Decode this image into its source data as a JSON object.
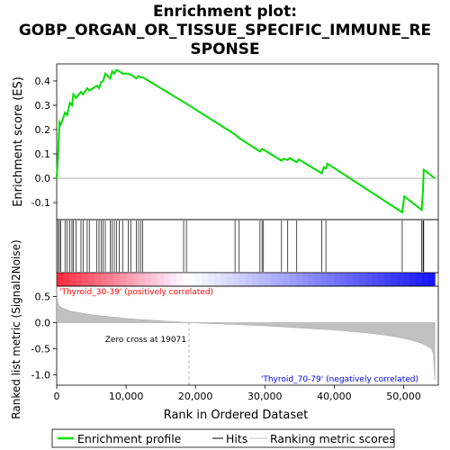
{
  "title_lines": [
    "Enrichment plot:",
    "GOBP_ORGAN_OR_TISSUE_SPECIFIC_IMMUNE_RE",
    "SPONSE"
  ],
  "colors": {
    "es_line": "#00dd00",
    "positive": "#ff0000",
    "negative": "#0000ff",
    "metric_fill": "#c0c0c0",
    "hits": "#000000"
  },
  "chart_data": [
    {
      "type": "line",
      "name": "Enrichment profile",
      "ylabel": "Enrichment score (ES)",
      "ylim": [
        -0.17,
        0.47
      ],
      "yticks": [
        -0.1,
        0.0,
        0.1,
        0.2,
        0.3,
        0.4
      ],
      "ytick_labels": [
        "-0.1",
        "0.0",
        "0.1",
        "0.2",
        "0.3",
        "0.4"
      ],
      "xlim": [
        0,
        55000
      ],
      "x": [
        0,
        200,
        400,
        600,
        1200,
        1500,
        1900,
        2200,
        2400,
        2800,
        3500,
        3800,
        4400,
        4700,
        5800,
        6100,
        6400,
        6700,
        7000,
        7700,
        8000,
        8300,
        8600,
        9000,
        9500,
        10300,
        10700,
        11500,
        11800,
        12100,
        12400,
        18500,
        25700,
        26300,
        29300,
        29600,
        29800,
        32400,
        32700,
        33300,
        33600,
        34600,
        34900,
        38200,
        38500,
        38800,
        39000,
        49800,
        50100,
        52600,
        52800,
        52900,
        54500
      ],
      "y": [
        0.0,
        0.09,
        0.23,
        0.22,
        0.27,
        0.26,
        0.31,
        0.3,
        0.345,
        0.33,
        0.355,
        0.345,
        0.37,
        0.36,
        0.38,
        0.37,
        0.395,
        0.4,
        0.43,
        0.41,
        0.44,
        0.43,
        0.445,
        0.44,
        0.43,
        0.43,
        0.425,
        0.41,
        0.42,
        0.415,
        0.415,
        0.31,
        0.18,
        0.165,
        0.11,
        0.12,
        0.118,
        0.072,
        0.08,
        0.075,
        0.083,
        0.066,
        0.077,
        0.02,
        0.045,
        0.04,
        0.06,
        -0.14,
        -0.075,
        -0.13,
        -0.05,
        0.035,
        0.0
      ]
    },
    {
      "type": "scatter",
      "name": "Hits",
      "x": [
        200,
        400,
        600,
        1200,
        1500,
        1900,
        2200,
        2400,
        2800,
        3500,
        3800,
        4400,
        4700,
        5800,
        6100,
        6400,
        6700,
        7000,
        7700,
        8000,
        8300,
        8600,
        9000,
        9500,
        10300,
        10700,
        11500,
        11800,
        12100,
        12400,
        18300,
        18700,
        25700,
        26300,
        29300,
        29600,
        29800,
        32400,
        33300,
        34600,
        38200,
        38800,
        49800,
        52600,
        52800,
        52900
      ]
    },
    {
      "type": "area",
      "name": "Ranking metric scores",
      "xlabel": "Rank in Ordered Dataset",
      "ylabel": "Ranked list metric (Signal2Noise)",
      "ylim": [
        -1.2,
        0.7
      ],
      "yticks": [
        -1.0,
        -0.5,
        0.0,
        0.5
      ],
      "ytick_labels": [
        "-1.0",
        "-0.5",
        "0.0",
        "0.5"
      ],
      "xlim": [
        0,
        55000
      ],
      "xticks": [
        0,
        10000,
        20000,
        30000,
        40000,
        50000
      ],
      "xtick_labels": [
        "0",
        "10,000",
        "20,000",
        "30,000",
        "40,000",
        "50,000"
      ],
      "x": [
        0,
        50,
        300,
        800,
        2000,
        5000,
        10000,
        15000,
        19071,
        25000,
        30000,
        35000,
        40000,
        45000,
        48000,
        50000,
        52000,
        53000,
        54000,
        54300,
        54500
      ],
      "y": [
        0.7,
        0.45,
        0.33,
        0.28,
        0.22,
        0.15,
        0.08,
        0.035,
        0.0,
        -0.03,
        -0.06,
        -0.1,
        -0.14,
        -0.2,
        -0.25,
        -0.3,
        -0.37,
        -0.42,
        -0.5,
        -0.6,
        -1.1
      ],
      "zero_cross": 19071,
      "zero_cross_label": "Zero cross at 19071",
      "pos_label": "'Thyroid_30-39' (positively correlated)",
      "neg_label": "'Thyroid_70-79' (negatively correlated)"
    }
  ],
  "legend": {
    "es": "Enrichment profile",
    "hits": "Hits",
    "metric": "Ranking metric scores"
  }
}
